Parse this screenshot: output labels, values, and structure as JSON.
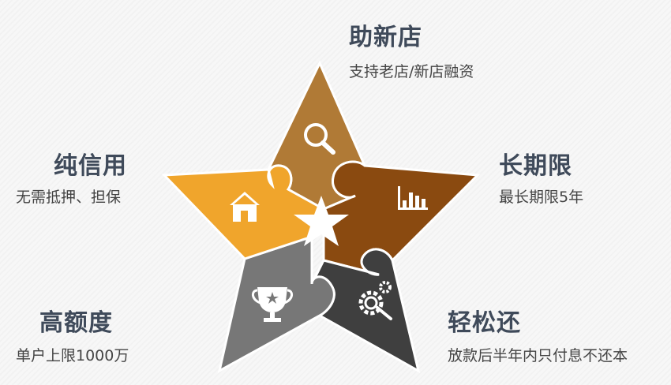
{
  "features": [
    {
      "title": "助新店",
      "desc": "支持老店/新店融资",
      "icon": "magnifier-icon",
      "color": "#b07a36"
    },
    {
      "title": "长期限",
      "desc": "最长期限5年",
      "icon": "bar-chart-icon",
      "color": "#8a4a10"
    },
    {
      "title": "轻松还",
      "desc": "放款后半年内只付息不还本",
      "icon": "gear-wrench-icon",
      "color": "#3f3f3f"
    },
    {
      "title": "高额度",
      "desc": "单户上限1000万",
      "icon": "trophy-icon",
      "color": "#777777"
    },
    {
      "title": "纯信用",
      "desc": "无需抵押、担保",
      "icon": "house-icon",
      "color": "#f0a52c"
    }
  ]
}
